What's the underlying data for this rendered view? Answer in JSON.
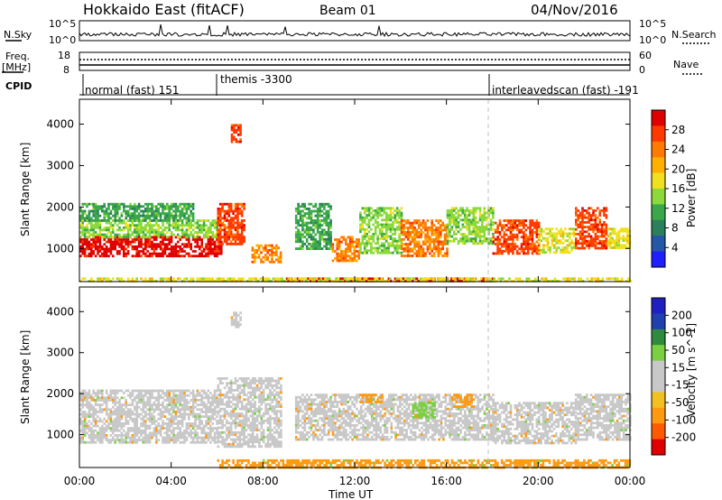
{
  "header": {
    "title": "Hokkaido East (fitACF)",
    "beam": "Beam 01",
    "date": "04/Nov/2016"
  },
  "strip": {
    "nsky_label": "N.Sky",
    "nsearch_label": "N.Search",
    "freq_label_1": "Freq.",
    "freq_label_2": "[MHz]",
    "nave_label": "Nave",
    "cpid_label": "CPID",
    "nsky_ticks": [
      "10^5",
      "10^0"
    ],
    "nsearch_ticks": [
      "10^5",
      "10^0"
    ],
    "freq_ticks": [
      "18",
      "8"
    ],
    "nave_ticks": [
      "60",
      "0"
    ],
    "cpid_segments": [
      {
        "label": "normal (fast) 151"
      },
      {
        "label": "themis -3300"
      },
      {
        "label": "interleavedscan (fast) -191"
      }
    ]
  },
  "colors": {
    "power_scale": [
      "#1e1eff",
      "#2457a8",
      "#2c7f5c",
      "#3aa84a",
      "#8bd93a",
      "#f0e020",
      "#ffb000",
      "#ff7a00",
      "#ff3a00",
      "#e00000"
    ],
    "velocity_scale": [
      "#e00000",
      "#ff5a00",
      "#ff9a10",
      "#f2c020",
      "#c8c8c8",
      "#c8c8c8",
      "#7ad040",
      "#2e8a3e",
      "#2040b0",
      "#2020c0"
    ],
    "gray": "#c8c8c8"
  },
  "chart_data": [
    {
      "type": "heatmap",
      "name": "power",
      "ylabel": "Slant Range [km]",
      "yticks": [
        "1000",
        "2000",
        "3000",
        "4000"
      ],
      "ylim": [
        200,
        4600
      ],
      "colorbar_label": "Power [dB]",
      "colorbar_ticks": [
        "4",
        "8",
        "12",
        "16",
        "20",
        "24",
        "28"
      ],
      "bands": [
        {
          "t0": 0.0,
          "t1": 6.2,
          "r0": 800,
          "r1": 1300,
          "level": 9
        },
        {
          "t0": 0.0,
          "t1": 6.0,
          "r0": 1300,
          "r1": 1700,
          "level": 4
        },
        {
          "t0": 0.0,
          "t1": 5.0,
          "r0": 1700,
          "r1": 2100,
          "level": 3
        },
        {
          "t0": 6.0,
          "t1": 7.2,
          "r0": 1100,
          "r1": 2100,
          "level": 8
        },
        {
          "t0": 7.5,
          "t1": 8.8,
          "r0": 700,
          "r1": 1100,
          "level": 7
        },
        {
          "t0": 6.6,
          "t1": 7.0,
          "r0": 3600,
          "r1": 4000,
          "level": 8
        },
        {
          "t0": 9.4,
          "t1": 11.0,
          "r0": 1000,
          "r1": 2100,
          "level": 3
        },
        {
          "t0": 11.0,
          "t1": 12.2,
          "r0": 700,
          "r1": 1300,
          "level": 7
        },
        {
          "t0": 12.2,
          "t1": 14.0,
          "r0": 900,
          "r1": 2000,
          "level": 4
        },
        {
          "t0": 14.0,
          "t1": 16.0,
          "r0": 800,
          "r1": 1700,
          "level": 7
        },
        {
          "t0": 16.0,
          "t1": 18.0,
          "r0": 1100,
          "r1": 2000,
          "level": 4
        },
        {
          "t0": 18.0,
          "t1": 20.0,
          "r0": 900,
          "r1": 1700,
          "level": 8
        },
        {
          "t0": 20.0,
          "t1": 21.6,
          "r0": 900,
          "r1": 1500,
          "level": 5
        },
        {
          "t0": 21.6,
          "t1": 23.0,
          "r0": 1000,
          "r1": 2000,
          "level": 8
        },
        {
          "t0": 23.0,
          "t1": 24.0,
          "r0": 1000,
          "r1": 1500,
          "level": 5
        },
        {
          "t0": 9.0,
          "t1": 18.0,
          "r0": 200,
          "r1": 300,
          "level": 9
        },
        {
          "t0": 0.0,
          "t1": 24.0,
          "r0": 200,
          "r1": 300,
          "level": 5
        }
      ]
    },
    {
      "type": "heatmap",
      "name": "velocity",
      "ylabel": "Slant Range [km]",
      "yticks": [
        "1000",
        "2000",
        "3000",
        "4000"
      ],
      "ylim": [
        200,
        4600
      ],
      "colorbar_label": "Velocity [m s^-1]",
      "colorbar_ticks": [
        "200",
        "100",
        "50",
        "15",
        "-15",
        "-50",
        "-100",
        "-200"
      ],
      "bands": [
        {
          "t0": 0.0,
          "t1": 6.0,
          "r0": 800,
          "r1": 2100,
          "level": 4
        },
        {
          "t0": 6.0,
          "t1": 8.8,
          "r0": 700,
          "r1": 2400,
          "level": 4
        },
        {
          "t0": 6.6,
          "t1": 7.0,
          "r0": 3600,
          "r1": 4000,
          "level": 4
        },
        {
          "t0": 9.4,
          "t1": 18.0,
          "r0": 900,
          "r1": 2000,
          "level": 4
        },
        {
          "t0": 12.2,
          "t1": 13.2,
          "r0": 1800,
          "r1": 2000,
          "level": 2
        },
        {
          "t0": 14.5,
          "t1": 15.5,
          "r0": 1400,
          "r1": 1800,
          "level": 6
        },
        {
          "t0": 16.2,
          "t1": 17.2,
          "r0": 1700,
          "r1": 2000,
          "level": 2
        },
        {
          "t0": 18.0,
          "t1": 21.6,
          "r0": 800,
          "r1": 1800,
          "level": 4
        },
        {
          "t0": 21.6,
          "t1": 24.0,
          "r0": 900,
          "r1": 2000,
          "level": 4
        },
        {
          "t0": 6.0,
          "t1": 24.0,
          "r0": 200,
          "r1": 400,
          "level": 2
        }
      ]
    }
  ],
  "xaxis": {
    "label": "Time UT",
    "ticks": [
      "00:00",
      "04:00",
      "08:00",
      "12:00",
      "16:00",
      "20:00",
      "00:00"
    ]
  }
}
